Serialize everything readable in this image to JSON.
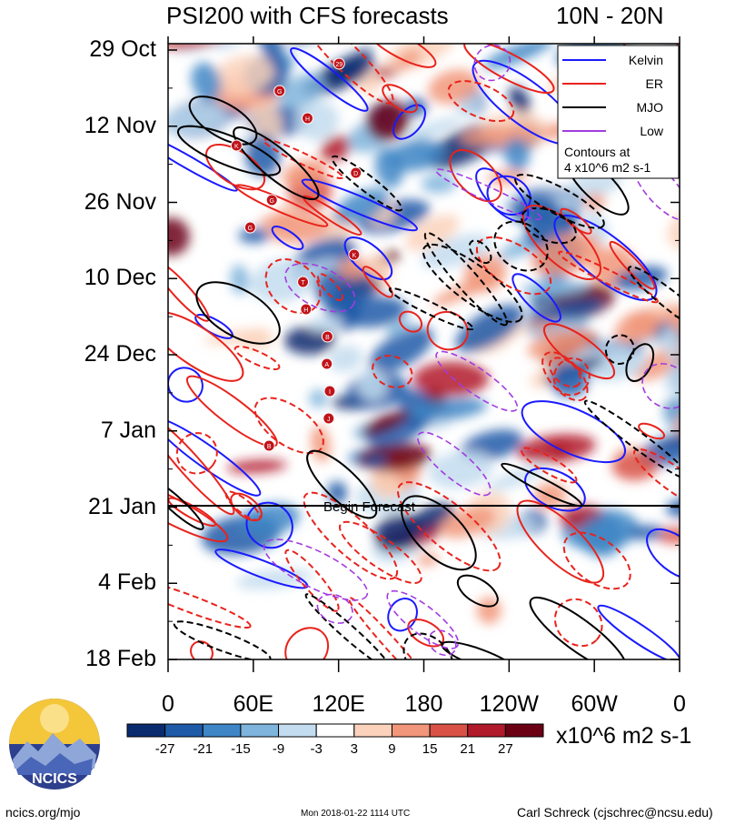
{
  "title": "PSI200 with CFS forecasts",
  "lat_band": "10N - 20N",
  "chart_data": {
    "type": "heatmap",
    "title": "PSI200 with CFS forecasts",
    "region": "10N - 20N",
    "y_ticks": [
      "29 Oct",
      "12 Nov",
      "26 Nov",
      "10 Dec",
      "24 Dec",
      "7 Jan",
      "21 Jan",
      "4 Feb",
      "18 Feb"
    ],
    "x_ticks": [
      "0",
      "60E",
      "120E",
      "180",
      "120W",
      "60W",
      "0"
    ],
    "forecast_label": "Begin Forecast",
    "forecast_start": "21 Jan",
    "legend": {
      "entries": [
        {
          "name": "Kelvin",
          "color": "#1a1aff"
        },
        {
          "name": "ER",
          "color": "#e8231c"
        },
        {
          "name": "MJO",
          "color": "#000000"
        },
        {
          "name": "Low",
          "color": "#a23be0"
        }
      ],
      "note_line1": "Contours at",
      "note_line2": "4 x10^6 m2 s-1",
      "position": "top-right"
    },
    "colorbar": {
      "ticks": [
        "-27",
        "-21",
        "-15",
        "-9",
        "-3",
        "3",
        "9",
        "15",
        "21",
        "27"
      ],
      "colors": [
        "#0a2c6e",
        "#1f5aa8",
        "#3e86c6",
        "#7fb4dc",
        "#c3dcef",
        "#ffffff",
        "#fbd2bb",
        "#f1967a",
        "#d95145",
        "#b11a2b",
        "#6b0015"
      ],
      "units": "x10^6 m2 s-1"
    },
    "storm_markers": [
      "29",
      "G",
      "H",
      "K",
      "D",
      "G",
      "G",
      "K",
      "T",
      "H",
      "B",
      "A",
      "I",
      "J",
      "B"
    ]
  },
  "logo_text": "NCICS",
  "footer": {
    "url": "ncics.org/mjo",
    "timestamp": "Mon 2018-01-22 1114 UTC",
    "credit": "Carl Schreck (cjschrec@ncsu.edu)"
  }
}
